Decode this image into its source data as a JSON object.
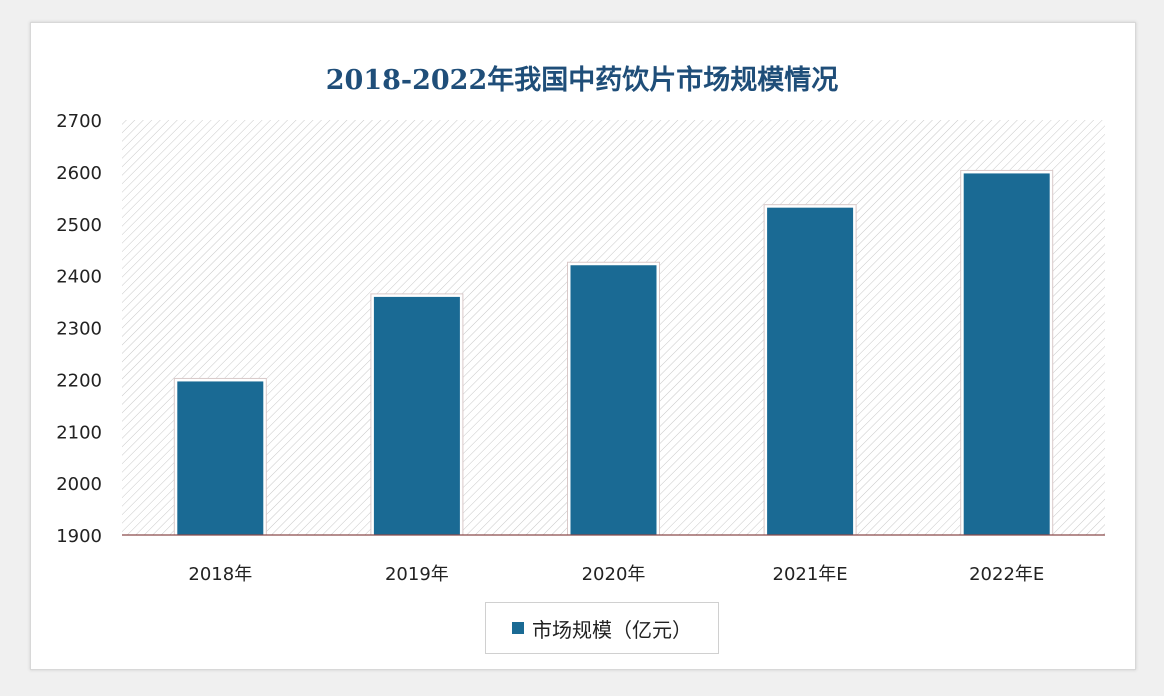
{
  "chart_data": {
    "type": "bar",
    "title": "2018-2022年我国中药饮片市场规模情况",
    "categories": [
      "2018年",
      "2019年",
      "2020年",
      "2021年E",
      "2022年E"
    ],
    "series": [
      {
        "name": "市场规模（亿元）",
        "values": [
          2196,
          2359,
          2420,
          2531,
          2597
        ]
      }
    ],
    "ylim": [
      1900,
      2700
    ],
    "yticks": [
      1900,
      2000,
      2100,
      2200,
      2300,
      2400,
      2500,
      2600,
      2700
    ],
    "legend_position": "bottom",
    "grid": false,
    "bar_color": "#1a6a94",
    "plot_background": "diagonal hatch"
  }
}
